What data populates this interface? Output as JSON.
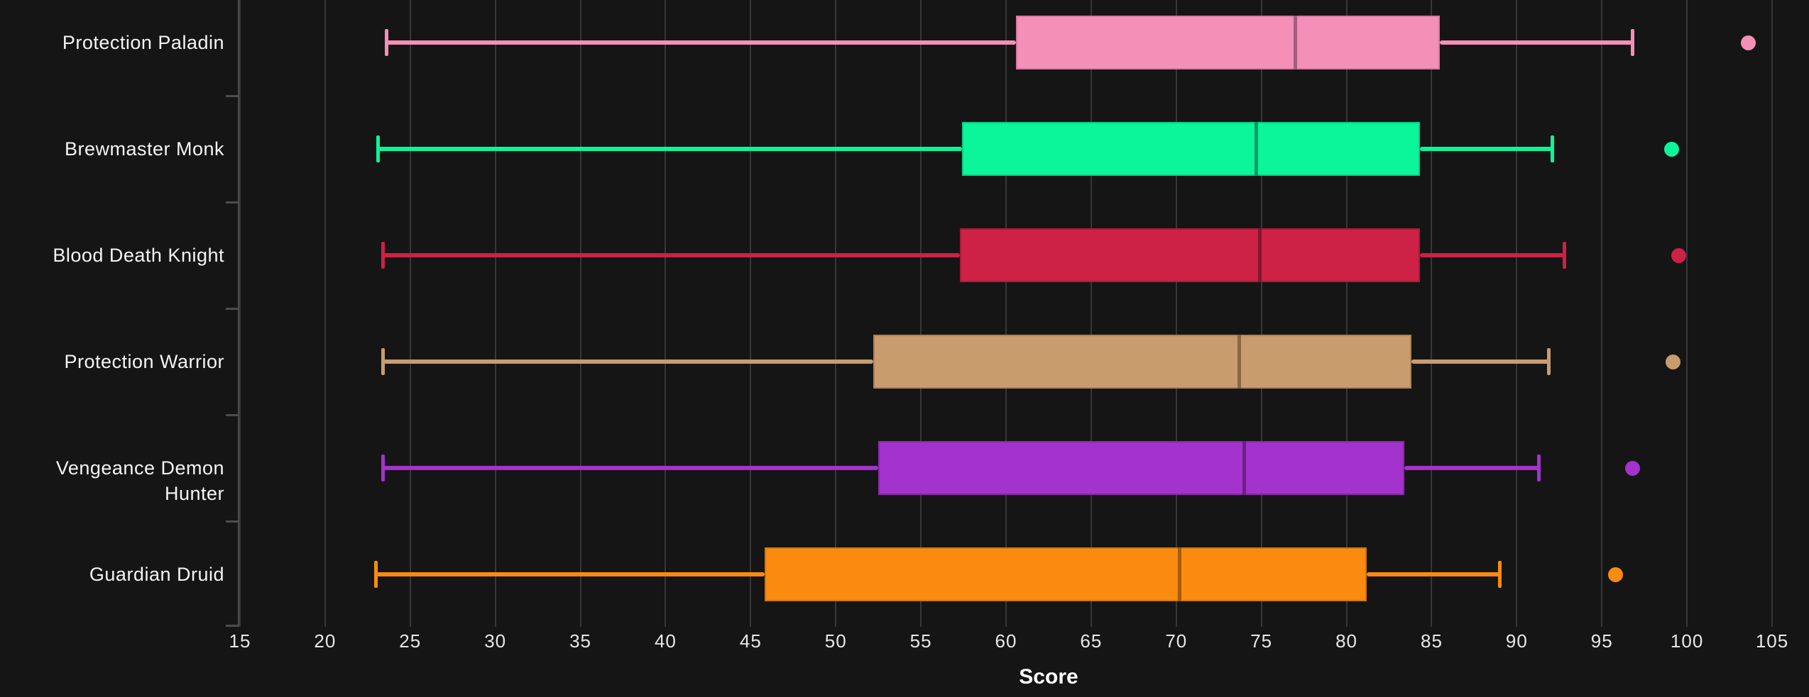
{
  "chart_data": {
    "type": "boxplot",
    "orientation": "horizontal",
    "title": "",
    "xlabel": "Score",
    "ylabel": "",
    "x_ticks": [
      15,
      20,
      25,
      30,
      35,
      40,
      45,
      50,
      55,
      60,
      65,
      70,
      75,
      80,
      85,
      90,
      95,
      100,
      105
    ],
    "xlim": [
      14.8,
      107.5
    ],
    "grid": "vertical-only",
    "legend": "none",
    "theme_colors": {
      "background": "#151515",
      "gridline": "#373737",
      "axis": "#4c4c4c",
      "tick_label": "#e8e8e8",
      "category_label": "#f4f4f4",
      "axis_title": "#ffffff"
    },
    "categories": [
      "Protection Paladin",
      "Brewmaster Monk",
      "Blood Death Knight",
      "Protection Warrior",
      "Vengeance Demon Hunter",
      "Guardian Druid"
    ],
    "series": [
      {
        "label": "Protection Paladin",
        "fill": "#f48fb8",
        "border": "#d977a2",
        "median_color": "#a25e7e",
        "whisker_min": 23.6,
        "q1": 60.6,
        "median": 77.0,
        "q3": 85.5,
        "whisker_max": 96.8,
        "outliers": [
          103.6
        ]
      },
      {
        "label": "Brewmaster Monk",
        "fill": "#0bf59a",
        "border": "#09cf83",
        "median_color": "#089a62",
        "whisker_min": 23.1,
        "q1": 57.4,
        "median": 74.7,
        "q3": 84.3,
        "whisker_max": 92.1,
        "outliers": [
          99.1
        ]
      },
      {
        "label": "Blood Death Knight",
        "fill": "#cd2146",
        "border": "#ab1b3a",
        "median_color": "#84152d",
        "whisker_min": 23.4,
        "q1": 57.3,
        "median": 74.9,
        "q3": 84.3,
        "whisker_max": 92.8,
        "outliers": [
          99.5
        ]
      },
      {
        "label": "Protection Warrior",
        "fill": "#c99c6e",
        "border": "#ae8257",
        "median_color": "#8a6643",
        "whisker_min": 23.4,
        "q1": 52.2,
        "median": 73.7,
        "q3": 83.8,
        "whisker_max": 91.9,
        "outliers": [
          99.2
        ]
      },
      {
        "label": "Vengeance Demon Hunter",
        "fill": "#a432cc",
        "border": "#8a2aac",
        "median_color": "#6b2086",
        "whisker_min": 23.4,
        "q1": 52.5,
        "median": 74.0,
        "q3": 83.4,
        "whisker_max": 91.3,
        "outliers": [
          96.8
        ]
      },
      {
        "label": "Guardian Druid",
        "fill": "#fa8b10",
        "border": "#d4760d",
        "median_color": "#a65c09",
        "whisker_min": 23.0,
        "q1": 45.8,
        "median": 70.2,
        "q3": 81.2,
        "whisker_max": 89.0,
        "outliers": [
          95.8
        ]
      }
    ]
  }
}
